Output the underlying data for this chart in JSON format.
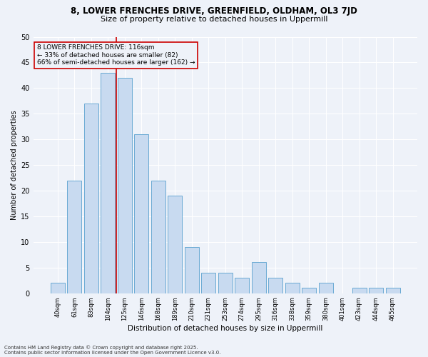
{
  "title1": "8, LOWER FRENCHES DRIVE, GREENFIELD, OLDHAM, OL3 7JD",
  "title2": "Size of property relative to detached houses in Uppermill",
  "xlabel": "Distribution of detached houses by size in Uppermill",
  "ylabel": "Number of detached properties",
  "categories": [
    "40sqm",
    "61sqm",
    "83sqm",
    "104sqm",
    "125sqm",
    "146sqm",
    "168sqm",
    "189sqm",
    "210sqm",
    "231sqm",
    "253sqm",
    "274sqm",
    "295sqm",
    "316sqm",
    "338sqm",
    "359sqm",
    "380sqm",
    "401sqm",
    "423sqm",
    "444sqm",
    "465sqm"
  ],
  "values": [
    2,
    22,
    37,
    43,
    42,
    31,
    22,
    19,
    9,
    4,
    4,
    3,
    6,
    3,
    2,
    1,
    2,
    0,
    1,
    1,
    1
  ],
  "bar_color": "#c8daf0",
  "bar_edge_color": "#6aaad4",
  "line_color": "#cc0000",
  "annotation_text": "8 LOWER FRENCHES DRIVE: 116sqm\n← 33% of detached houses are smaller (82)\n66% of semi-detached houses are larger (162) →",
  "annotation_box_color": "#cc0000",
  "red_line_x": 3.5,
  "footnote1": "Contains HM Land Registry data © Crown copyright and database right 2025.",
  "footnote2": "Contains public sector information licensed under the Open Government Licence v3.0.",
  "bg_color": "#eef2f9",
  "ylim": [
    0,
    50
  ],
  "yticks": [
    0,
    5,
    10,
    15,
    20,
    25,
    30,
    35,
    40,
    45,
    50
  ],
  "title1_fontsize": 8.5,
  "title2_fontsize": 8,
  "ylabel_fontsize": 7,
  "xlabel_fontsize": 7.5,
  "xtick_fontsize": 6,
  "ytick_fontsize": 7,
  "annot_fontsize": 6.5,
  "footnote_fontsize": 5
}
